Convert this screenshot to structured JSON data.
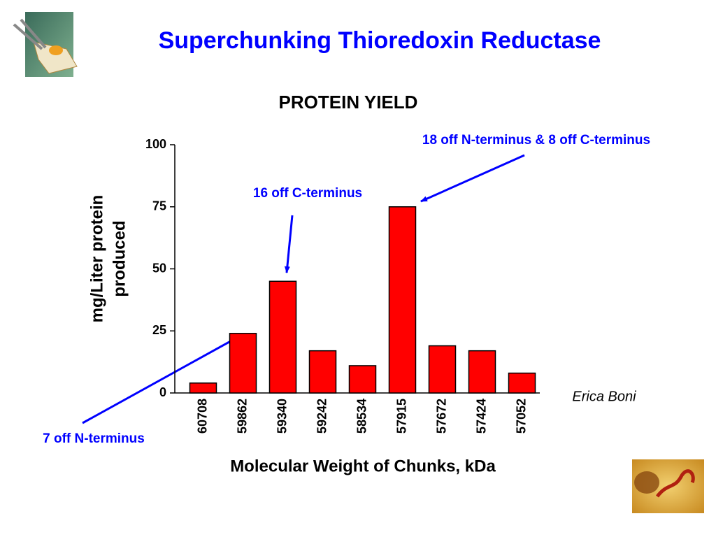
{
  "slide": {
    "title": "Superchunking Thioredoxin Reductase",
    "author": "Erica Boni"
  },
  "chart_data": {
    "type": "bar",
    "title": "PROTEIN YIELD",
    "xlabel": "Molecular Weight of Chunks, kDa",
    "ylabel": [
      "mg/Liter protein",
      "produced"
    ],
    "categories": [
      "60708",
      "59862",
      "59340",
      "59242",
      "58534",
      "57915",
      "57672",
      "57424",
      "57052"
    ],
    "values": [
      4,
      24,
      45,
      17,
      11,
      75,
      19,
      17,
      8
    ],
    "color": "#ff0000",
    "ylim": [
      0,
      100
    ],
    "yticks": [
      0,
      25,
      50,
      75,
      100
    ],
    "grid": false,
    "annotations": [
      "18 off N-terminus & 8 off C-terminus",
      "16 off C-terminus",
      "7 off N-terminus"
    ]
  }
}
